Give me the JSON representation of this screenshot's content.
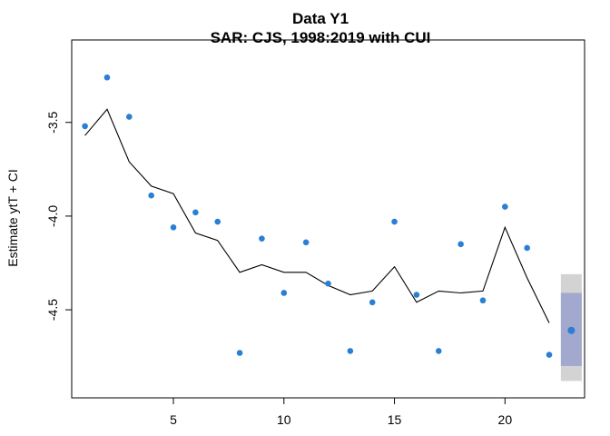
{
  "chart_data": {
    "type": "line",
    "title": "Data Y1",
    "subtitle": "SAR: CJS, 1998:2019 with CUI",
    "xlabel": "",
    "ylabel": "Estimate ytT + CI",
    "xlim": [
      0.4,
      23.6
    ],
    "ylim": [
      -4.97,
      -3.06
    ],
    "x_ticks": [
      5,
      10,
      15,
      20
    ],
    "x_tick_labels": [
      "5",
      "10",
      "15",
      "20"
    ],
    "y_ticks": [
      -3.5,
      -4.0,
      -4.5
    ],
    "y_tick_labels": [
      "-3.5",
      "-4.0",
      "-4.5"
    ],
    "grid": false,
    "colors": {
      "points": "#2a7fd4",
      "line": "#000000",
      "ci_outer": "#d3d3d3",
      "ci_inner": "#a3a8cf"
    },
    "series": [
      {
        "type": "line",
        "x": [
          1,
          2,
          3,
          4,
          5,
          6,
          7,
          8,
          9,
          10,
          11,
          12,
          13,
          14,
          15,
          16,
          17,
          18,
          19,
          20,
          21,
          22
        ],
        "y": [
          -3.57,
          -3.43,
          -3.71,
          -3.84,
          -3.88,
          -4.09,
          -4.13,
          -4.3,
          -4.26,
          -4.3,
          -4.3,
          -4.37,
          -4.42,
          -4.4,
          -4.27,
          -4.46,
          -4.4,
          -4.41,
          -4.4,
          -4.06,
          -4.33,
          -4.57
        ]
      },
      {
        "type": "scatter",
        "x": [
          1,
          2,
          3,
          4,
          5,
          6,
          7,
          8,
          9,
          10,
          11,
          12,
          13,
          14,
          15,
          16,
          17,
          18,
          19,
          20,
          21,
          22,
          23
        ],
        "y": [
          -3.52,
          -3.26,
          -3.47,
          -3.89,
          -4.06,
          -3.98,
          -4.03,
          -4.73,
          -4.12,
          -4.41,
          -4.14,
          -4.36,
          -4.72,
          -4.46,
          -4.03,
          -4.42,
          -4.72,
          -4.15,
          -4.45,
          -3.95,
          -4.17,
          -4.74,
          -4.61
        ]
      }
    ],
    "interval": {
      "x": 23,
      "outer": [
        -4.88,
        -4.31
      ],
      "inner": [
        -4.8,
        -4.41
      ],
      "point": -4.61
    }
  }
}
